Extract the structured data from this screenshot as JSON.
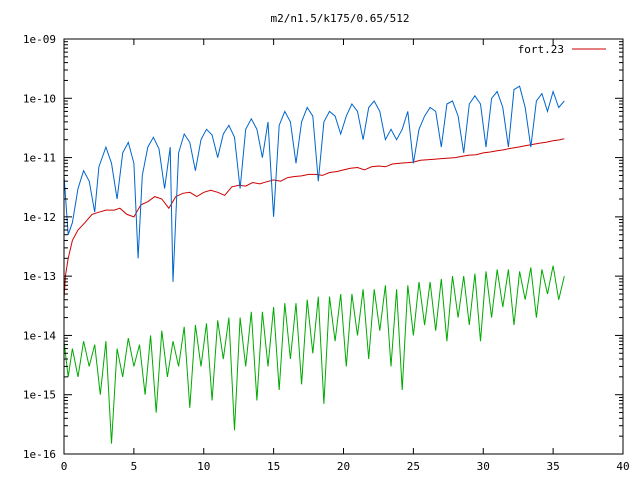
{
  "chart_data": {
    "type": "line",
    "title": "m2/n1.5/k175/0.65/512",
    "xlabel": "",
    "ylabel": "",
    "xlim": [
      0,
      40
    ],
    "ylim": [
      1e-16,
      1e-09
    ],
    "yscale": "log",
    "grid": false,
    "legend_position": "top-right",
    "x_ticks": [
      0,
      5,
      10,
      15,
      20,
      25,
      30,
      35,
      40
    ],
    "x_tick_labels": [
      "0",
      "5",
      "10",
      "15",
      "20",
      "25",
      "30",
      "35",
      "40"
    ],
    "y_ticks": [
      1e-16,
      1e-15,
      1e-14,
      1e-13,
      1e-12,
      1e-11,
      1e-10,
      1e-09
    ],
    "y_tick_labels": [
      "1e-16",
      "1e-15",
      "1e-14",
      "1e-13",
      "1e-12",
      "1e-11",
      "1e-10",
      "1e-09"
    ],
    "series": [
      {
        "name": "fort.23",
        "color": "#cc0000",
        "x": [
          0,
          0.1,
          0.3,
          0.6,
          1.0,
          1.5,
          2.0,
          2.5,
          3.0,
          3.6,
          4.0,
          4.5,
          5.0,
          5.5,
          6.0,
          6.5,
          7.0,
          7.5,
          8.0,
          8.5,
          9.0,
          9.5,
          10.0,
          10.5,
          11.0,
          11.5,
          12.0,
          12.5,
          13.0,
          13.5,
          14.0,
          14.5,
          15.0,
          15.5,
          16.0,
          16.5,
          17.0,
          17.5,
          18.0,
          18.5,
          19.0,
          19.5,
          20.0,
          20.5,
          21.0,
          21.5,
          22.0,
          22.5,
          23.0,
          23.5,
          24.0,
          24.5,
          25.0,
          25.5,
          26.0,
          26.5,
          27.0,
          27.5,
          28.0,
          28.5,
          29.0,
          29.5,
          30.0,
          30.5,
          31.0,
          31.5,
          32.0,
          32.5,
          33.0,
          33.5,
          34.0,
          34.5,
          35.0,
          35.5,
          35.8
        ],
        "y": [
          4e-14,
          1e-13,
          2e-13,
          4e-13,
          6e-13,
          8e-13,
          1.1e-12,
          1.2e-12,
          1.3e-12,
          1.3e-12,
          1.4e-12,
          1.1e-12,
          1e-12,
          1.6e-12,
          1.8e-12,
          2.2e-12,
          2e-12,
          1.4e-12,
          2.2e-12,
          2.5e-12,
          2.6e-12,
          2.2e-12,
          2.6e-12,
          2.8e-12,
          2.6e-12,
          2.3e-12,
          3.2e-12,
          3.4e-12,
          3.3e-12,
          3.8e-12,
          3.6e-12,
          3.9e-12,
          4.2e-12,
          4e-12,
          4.6e-12,
          4.8e-12,
          4.9e-12,
          5.2e-12,
          5.2e-12,
          5e-12,
          5.6e-12,
          5.8e-12,
          6.2e-12,
          6.6e-12,
          6.8e-12,
          6.2e-12,
          7e-12,
          7.2e-12,
          7e-12,
          7.8e-12,
          8e-12,
          8.2e-12,
          8.4e-12,
          9e-12,
          9.2e-12,
          9.4e-12,
          9.6e-12,
          9.8e-12,
          1e-11,
          1.05e-11,
          1.1e-11,
          1.12e-11,
          1.2e-11,
          1.24e-11,
          1.3e-11,
          1.36e-11,
          1.44e-11,
          1.5e-11,
          1.58e-11,
          1.66e-11,
          1.74e-11,
          1.82e-11,
          1.92e-11,
          2e-11,
          2.08e-11
        ]
      },
      {
        "color": "#0066cc",
        "x": [
          0,
          0.3,
          0.6,
          1.0,
          1.4,
          1.8,
          2.2,
          2.5,
          3.0,
          3.4,
          3.8,
          4.2,
          4.6,
          5.0,
          5.3,
          5.6,
          6.0,
          6.4,
          6.8,
          7.2,
          7.6,
          7.8,
          8.2,
          8.6,
          9.0,
          9.4,
          9.8,
          10.2,
          10.6,
          11.0,
          11.4,
          11.8,
          12.2,
          12.6,
          13.0,
          13.4,
          13.8,
          14.2,
          14.6,
          15.0,
          15.4,
          15.8,
          16.2,
          16.6,
          17.0,
          17.4,
          17.8,
          18.2,
          18.6,
          19.0,
          19.4,
          19.8,
          20.2,
          20.6,
          21.0,
          21.4,
          21.8,
          22.2,
          22.6,
          23.0,
          23.4,
          23.8,
          24.2,
          24.6,
          25.0,
          25.4,
          25.8,
          26.2,
          26.6,
          27.0,
          27.4,
          27.8,
          28.2,
          28.6,
          29.0,
          29.4,
          29.8,
          30.2,
          30.6,
          31.0,
          31.4,
          31.8,
          32.2,
          32.6,
          33.0,
          33.4,
          33.8,
          34.2,
          34.6,
          35.0,
          35.4,
          35.8
        ],
        "y": [
          5e-12,
          5e-13,
          8e-13,
          3e-12,
          6e-12,
          4e-12,
          1.2e-12,
          7e-12,
          1.5e-11,
          8e-12,
          2e-12,
          1.2e-11,
          1.8e-11,
          8e-12,
          2e-13,
          5e-12,
          1.5e-11,
          2.2e-11,
          1.4e-11,
          3e-12,
          1.5e-11,
          8e-14,
          1.2e-11,
          2.5e-11,
          1.8e-11,
          6e-12,
          2e-11,
          3e-11,
          2.4e-11,
          1e-11,
          2.5e-11,
          3.5e-11,
          2.2e-11,
          3e-12,
          3e-11,
          4.5e-11,
          3e-11,
          1e-11,
          4e-11,
          1e-12,
          3.5e-11,
          6e-11,
          4e-11,
          8e-12,
          4e-11,
          7e-11,
          5e-11,
          4e-12,
          4e-11,
          6e-11,
          5e-11,
          2.5e-11,
          5e-11,
          8e-11,
          6e-11,
          2e-11,
          7e-11,
          9e-11,
          6e-11,
          2e-11,
          3e-11,
          2e-11,
          3e-11,
          6e-11,
          8e-12,
          3e-11,
          5e-11,
          7e-11,
          6e-11,
          1.5e-11,
          8e-11,
          9e-11,
          5e-11,
          1.2e-11,
          8e-11,
          1.1e-10,
          8e-11,
          1.5e-11,
          1e-10,
          1.3e-10,
          7e-11,
          1.5e-11,
          1.4e-10,
          1.6e-10,
          7e-11,
          1.5e-11,
          9e-11,
          1.2e-10,
          6e-11,
          1.3e-10,
          7e-11,
          9e-11
        ]
      },
      {
        "color": "#00aa00",
        "x": [
          0,
          0.3,
          0.6,
          1.0,
          1.4,
          1.8,
          2.2,
          2.6,
          3.0,
          3.4,
          3.8,
          4.2,
          4.6,
          5.0,
          5.4,
          5.8,
          6.2,
          6.6,
          7.0,
          7.4,
          7.8,
          8.2,
          8.6,
          9.0,
          9.4,
          9.8,
          10.2,
          10.6,
          11.0,
          11.4,
          11.8,
          12.2,
          12.6,
          13.0,
          13.4,
          13.8,
          14.2,
          14.6,
          15.0,
          15.4,
          15.8,
          16.2,
          16.6,
          17.0,
          17.4,
          17.8,
          18.2,
          18.6,
          19.0,
          19.4,
          19.8,
          20.2,
          20.6,
          21.0,
          21.4,
          21.8,
          22.2,
          22.6,
          23.0,
          23.4,
          23.8,
          24.2,
          24.6,
          25.0,
          25.4,
          25.8,
          26.2,
          26.6,
          27.0,
          27.4,
          27.8,
          28.2,
          28.6,
          29.0,
          29.4,
          29.8,
          30.2,
          30.6,
          31.0,
          31.4,
          31.8,
          32.2,
          32.6,
          33.0,
          33.4,
          33.8,
          34.2,
          34.6,
          35.0,
          35.4,
          35.8
        ],
        "y": [
          8e-15,
          2e-15,
          6e-15,
          2e-15,
          8e-15,
          3e-15,
          7e-15,
          1e-15,
          8e-15,
          1.5e-16,
          6e-15,
          2e-15,
          9e-15,
          3e-15,
          7e-15,
          1e-15,
          1e-14,
          5e-16,
          1.2e-14,
          2e-15,
          8e-15,
          3e-15,
          1.4e-14,
          6e-16,
          1.5e-14,
          3e-15,
          1.6e-14,
          8e-16,
          1.8e-14,
          4e-15,
          2e-14,
          2.5e-16,
          2e-14,
          3e-15,
          2.5e-14,
          8e-16,
          2.5e-14,
          3e-15,
          3e-14,
          1.2e-15,
          3.5e-14,
          4e-15,
          3.5e-14,
          1.5e-15,
          4e-14,
          5e-15,
          4.5e-14,
          7e-16,
          4.5e-14,
          8e-15,
          5e-14,
          3e-15,
          5e-14,
          1e-14,
          6e-14,
          4e-15,
          6e-14,
          1.2e-14,
          7e-14,
          3e-15,
          6e-14,
          1.2e-15,
          7e-14,
          1e-14,
          8e-14,
          1.5e-14,
          8e-14,
          1.2e-14,
          9e-14,
          8e-15,
          1e-13,
          2e-14,
          1e-13,
          1.5e-14,
          1.1e-13,
          8e-15,
          1.2e-13,
          2e-14,
          1.3e-13,
          3e-14,
          1.3e-13,
          1.5e-14,
          1.2e-13,
          4e-14,
          1.4e-13,
          2e-14,
          1.3e-13,
          5e-14,
          1.5e-13,
          4e-14,
          1e-13
        ]
      }
    ]
  }
}
